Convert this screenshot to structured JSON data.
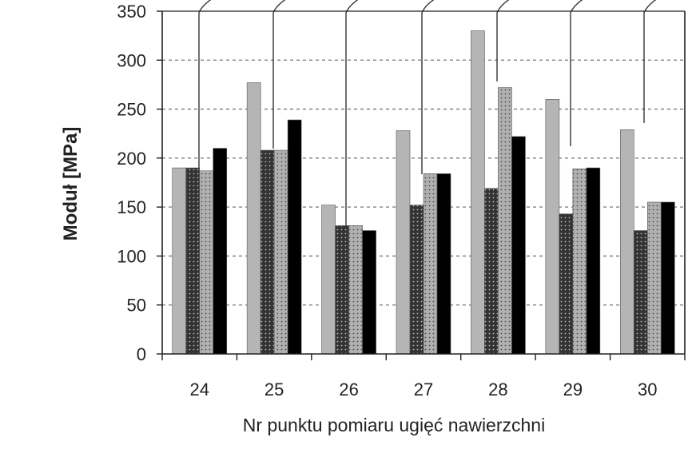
{
  "chart_data": {
    "type": "bar",
    "title": "",
    "xlabel": "Nr punktu pomiaru ugięć nawierzchni",
    "ylabel": "Moduł [MPa]",
    "ylim": [
      0,
      350
    ],
    "yticks": [
      0,
      50,
      100,
      150,
      200,
      250,
      300,
      350
    ],
    "grid": true,
    "legend": "none",
    "categories": [
      "24",
      "25",
      "26",
      "27",
      "28",
      "29",
      "30"
    ],
    "series": [
      {
        "values": [
          190,
          277,
          152,
          228,
          330,
          260,
          229
        ],
        "fill": "#b5b5b5",
        "pattern": "solid"
      },
      {
        "values": [
          190,
          208,
          131,
          152,
          169,
          143,
          126
        ],
        "fill": "#333333",
        "pattern": "dots-light"
      },
      {
        "values": [
          187,
          208,
          131,
          184,
          272,
          189,
          155
        ],
        "fill": "#a9a9a9",
        "pattern": "dots-dark"
      },
      {
        "values": [
          210,
          239,
          126,
          184,
          222,
          190,
          155
        ],
        "fill": "#000000",
        "pattern": "solid"
      }
    ],
    "colors": {
      "grid": "#777777",
      "axis": "#222222",
      "callout": "#333333"
    }
  }
}
